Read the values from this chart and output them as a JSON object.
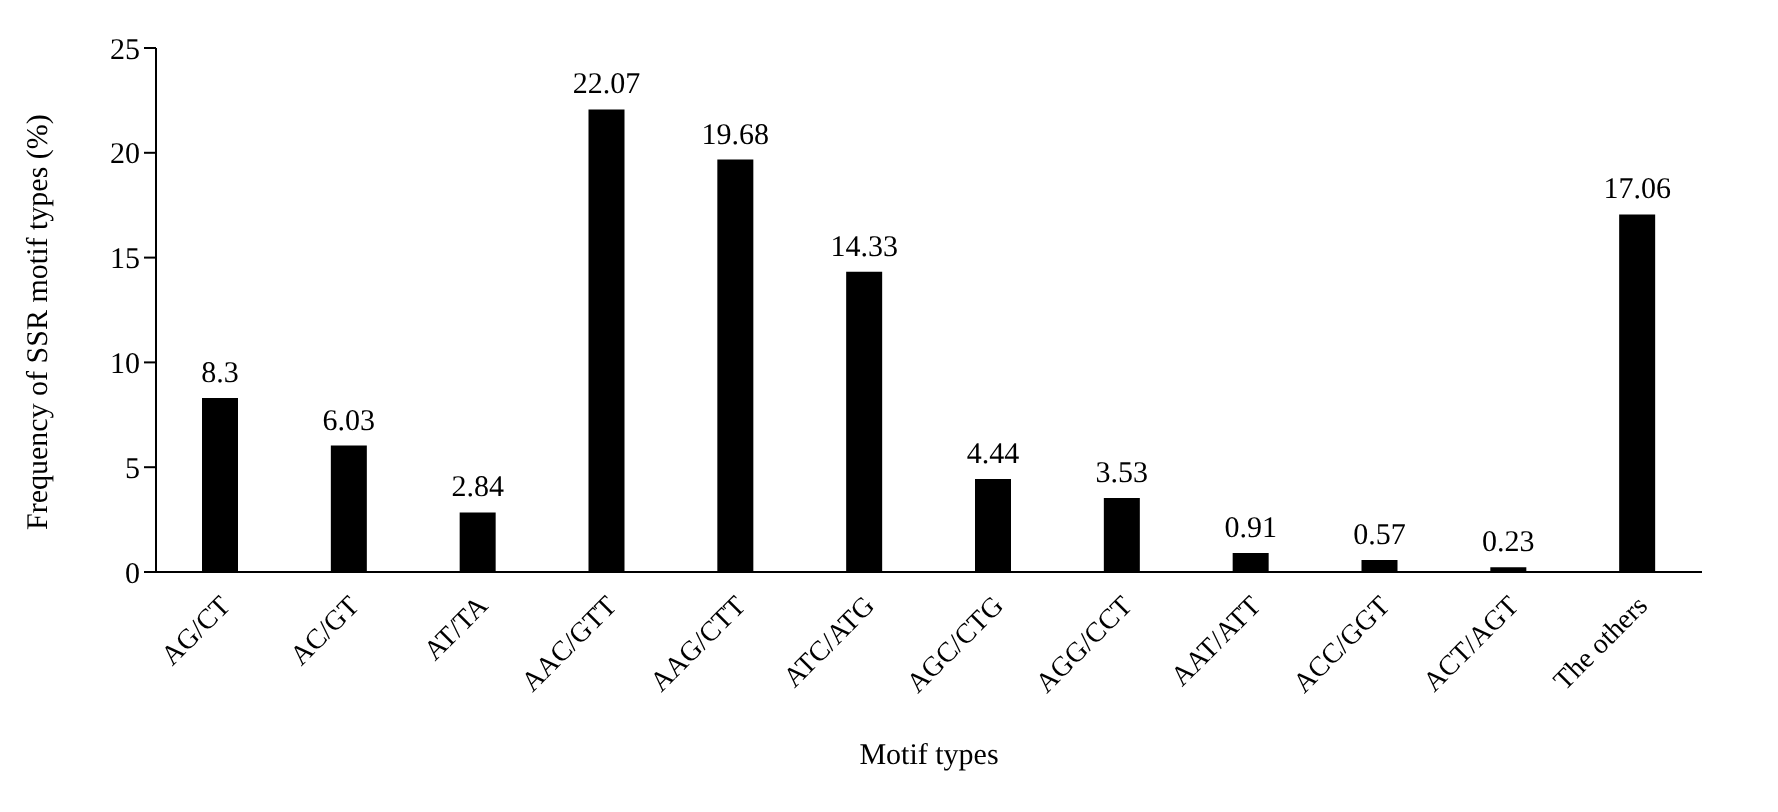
{
  "chart_data": {
    "type": "bar",
    "xlabel": "Motif types",
    "ylabel": "Frequency of SSR motif types (%)",
    "categories": [
      "AG/CT",
      "AC/GT",
      "AT/TA",
      "AAC/GTT",
      "AAG/CTT",
      "ATC/ATG",
      "AGC/CTG",
      "AGG/CCT",
      "AAT/ATT",
      "ACC/GGT",
      "ACT/AGT",
      "The others"
    ],
    "values": [
      8.3,
      6.03,
      2.84,
      22.07,
      19.68,
      14.33,
      4.44,
      3.53,
      0.91,
      0.57,
      0.23,
      17.06
    ],
    "color": "#000000",
    "ylim": [
      0,
      25
    ],
    "yticks": [
      0,
      5,
      10,
      15,
      20,
      25
    ],
    "data_labels": true
  }
}
